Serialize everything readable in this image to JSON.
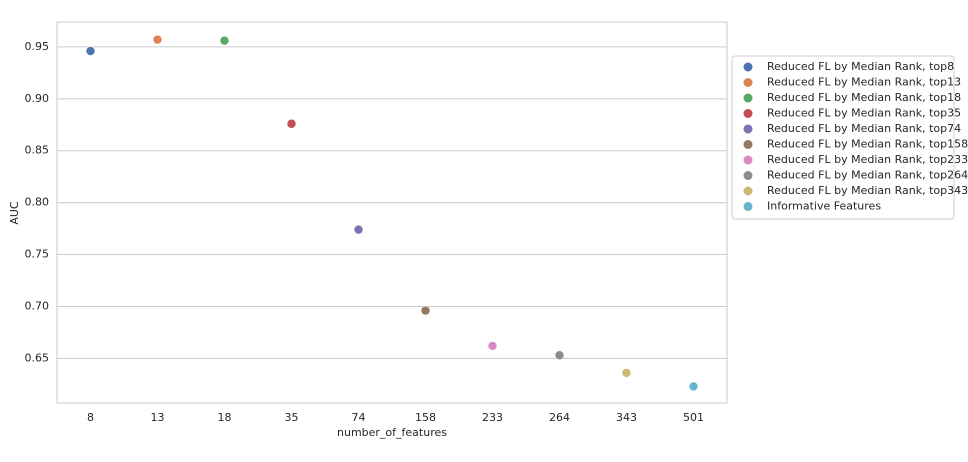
{
  "chart_data": {
    "type": "scatter",
    "x_label": "number_of_features",
    "y_label": "AUC",
    "categories": [
      "8",
      "13",
      "18",
      "35",
      "74",
      "158",
      "233",
      "264",
      "343",
      "501"
    ],
    "series": [
      {
        "name": "Reduced FL by Median Rank, top8",
        "color": "#4c72b0",
        "values": [
          0.946,
          null,
          null,
          null,
          null,
          null,
          null,
          null,
          null,
          null
        ]
      },
      {
        "name": "Reduced FL by Median Rank, top13",
        "color": "#dd8452",
        "values": [
          null,
          0.957,
          null,
          null,
          null,
          null,
          null,
          null,
          null,
          null
        ]
      },
      {
        "name": "Reduced FL by Median Rank, top18",
        "color": "#55a868",
        "values": [
          null,
          null,
          0.956,
          null,
          null,
          null,
          null,
          null,
          null,
          null
        ]
      },
      {
        "name": "Reduced FL by Median Rank, top35",
        "color": "#c44e52",
        "values": [
          null,
          null,
          null,
          0.876,
          null,
          null,
          null,
          null,
          null,
          null
        ]
      },
      {
        "name": "Reduced FL by Median Rank, top74",
        "color": "#8172b3",
        "values": [
          null,
          null,
          null,
          null,
          0.774,
          null,
          null,
          null,
          null,
          null
        ]
      },
      {
        "name": "Reduced FL by Median Rank, top158",
        "color": "#937860",
        "values": [
          null,
          null,
          null,
          null,
          null,
          0.696,
          null,
          null,
          null,
          null
        ]
      },
      {
        "name": "Reduced FL by Median Rank, top233",
        "color": "#da8bc3",
        "values": [
          null,
          null,
          null,
          null,
          null,
          null,
          0.662,
          null,
          null,
          null
        ]
      },
      {
        "name": "Reduced FL by Median Rank, top264",
        "color": "#8c8c8c",
        "values": [
          null,
          null,
          null,
          null,
          null,
          null,
          null,
          0.653,
          null,
          null
        ]
      },
      {
        "name": "Reduced FL by Median Rank, top343",
        "color": "#ccb974",
        "values": [
          null,
          null,
          null,
          null,
          null,
          null,
          null,
          null,
          0.636,
          null
        ]
      },
      {
        "name": "Informative Features",
        "color": "#64b5cd",
        "values": [
          null,
          null,
          null,
          null,
          null,
          null,
          null,
          null,
          null,
          0.623
        ]
      }
    ],
    "ylim": [
      0.607,
      0.974
    ],
    "yticks": [
      0.65,
      {
        "value": 0.7,
        "label": "0.70"
      },
      0.75,
      {
        "value": 0.8,
        "label": "0.80"
      },
      0.85,
      {
        "value": 0.9,
        "label": "0.90"
      },
      0.95
    ],
    "grid": true,
    "legend": "right"
  }
}
